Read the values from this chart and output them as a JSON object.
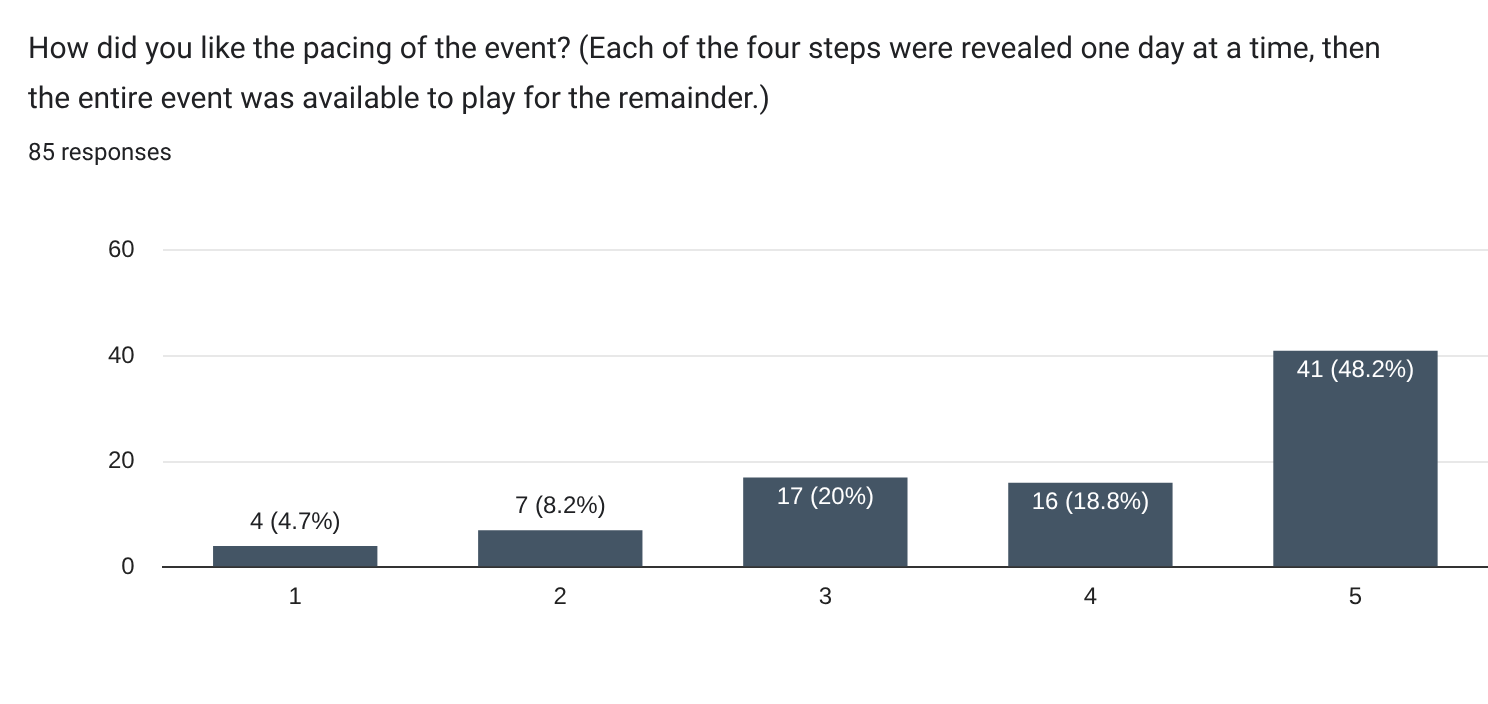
{
  "chart_data": {
    "type": "bar",
    "title": "How did you like the pacing of the event? (Each of the four steps were revealed one day at a time, then the entire event was available to play for the remainder.)",
    "subtitle": "85 responses",
    "categories": [
      "1",
      "2",
      "3",
      "4",
      "5"
    ],
    "values": [
      4,
      7,
      17,
      16,
      41
    ],
    "value_labels": [
      "4 (4.7%)",
      "7 (8.2%)",
      "17 (20%)",
      "16 (18.8%)",
      "41 (48.2%)"
    ],
    "color": "#445565",
    "ylim": [
      0,
      60
    ],
    "yticks": [
      0,
      20,
      40,
      60
    ],
    "grid": "y",
    "legend": false
  }
}
